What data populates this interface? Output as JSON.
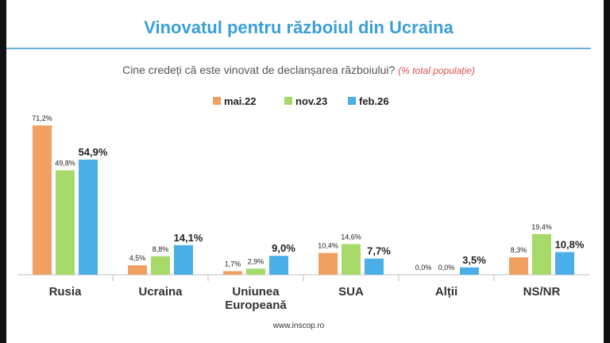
{
  "slide": {
    "title": "Vinovatul pentru războiul din Ucraina",
    "subtitle": "Cine credeți că este vinovat de declanșarea războiului?",
    "subtitle_note": "(% total populație)",
    "source": "www.inscop.ro"
  },
  "chart_data": {
    "type": "bar",
    "title": "Vinovatul pentru războiul din Ucraina",
    "categories": [
      "Rusia",
      "Ucraina",
      "Uniunea Europeană",
      "SUA",
      "Alții",
      "NS/NR"
    ],
    "category_lines": [
      [
        "Rusia"
      ],
      [
        "Ucraina"
      ],
      [
        "Uniunea",
        "Europeană"
      ],
      [
        "SUA"
      ],
      [
        "Alții"
      ],
      [
        "NS/NR"
      ]
    ],
    "series": [
      {
        "name": "mai.22",
        "color": "#f0a060",
        "values": [
          71.2,
          4.5,
          1.7,
          10.4,
          0.0,
          8.3
        ],
        "labels": [
          "71,2%",
          "4,5%",
          "1,7%",
          "10,4%",
          "0,0%",
          "8,3%"
        ]
      },
      {
        "name": "nov.23",
        "color": "#a6d96a",
        "values": [
          49.8,
          8.8,
          2.9,
          14.6,
          0.0,
          19.4
        ],
        "labels": [
          "49,8%",
          "8,8%",
          "2,9%",
          "14,6%",
          "0,0%",
          "19,4%"
        ]
      },
      {
        "name": "feb.26",
        "color": "#4aaee8",
        "values": [
          54.9,
          14.1,
          9.0,
          7.7,
          3.5,
          10.8
        ],
        "labels": [
          "54,9%",
          "14,1%",
          "9,0%",
          "7,7%",
          "3,5%",
          "10,8%"
        ]
      }
    ],
    "ylim": [
      0,
      75
    ],
    "grid": false,
    "legend": "top-center"
  }
}
